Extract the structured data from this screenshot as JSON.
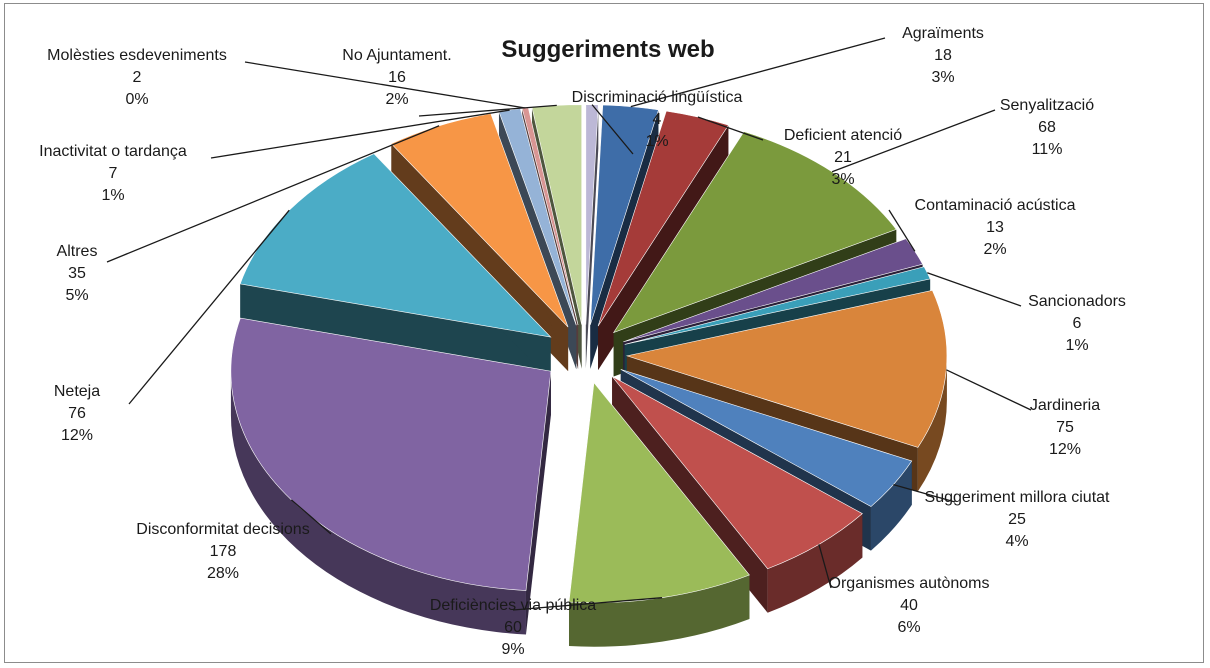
{
  "chart_data": {
    "type": "pie",
    "style": "exploded-3d",
    "title": "Suggeriments web",
    "legend": "none",
    "slices": [
      {
        "name": "Discriminació lingüística",
        "value": 4,
        "percent": "1%",
        "color": "#bcb8d6"
      },
      {
        "name": "Agraïments",
        "value": 18,
        "percent": "3%",
        "color": "#3e6da8"
      },
      {
        "name": "Deficient atenció",
        "value": 21,
        "percent": "3%",
        "color": "#a53b39"
      },
      {
        "name": "Senyalització",
        "value": 68,
        "percent": "11%",
        "color": "#7b9a3d"
      },
      {
        "name": "Contaminació acústica",
        "value": 13,
        "percent": "2%",
        "color": "#6a4f8c"
      },
      {
        "name": "Sancionadors",
        "value": 6,
        "percent": "1%",
        "color": "#3a9fb9"
      },
      {
        "name": "Jardineria",
        "value": 75,
        "percent": "12%",
        "color": "#d9853b"
      },
      {
        "name": "Suggeriment millora ciutat",
        "value": 25,
        "percent": "4%",
        "color": "#4f81bd"
      },
      {
        "name": "Organismes autònoms",
        "value": 40,
        "percent": "6%",
        "color": "#c0504d"
      },
      {
        "name": "Deficiències via pública",
        "value": 60,
        "percent": "9%",
        "color": "#9bbb59"
      },
      {
        "name": "Disconformitat decisions",
        "value": 178,
        "percent": "28%",
        "color": "#8064a2"
      },
      {
        "name": "Neteja",
        "value": 76,
        "percent": "12%",
        "color": "#4bacc6"
      },
      {
        "name": "Altres",
        "value": 35,
        "percent": "5%",
        "color": "#f79646"
      },
      {
        "name": "Inactivitat o tardança",
        "value": 7,
        "percent": "1%",
        "color": "#95b3d7"
      },
      {
        "name": "Molèsties esdeveniments",
        "value": 2,
        "percent": "0%",
        "color": "#d99694"
      },
      {
        "name": "No Ajuntament.",
        "value": 16,
        "percent": "2%",
        "color": "#c3d69b"
      }
    ]
  }
}
